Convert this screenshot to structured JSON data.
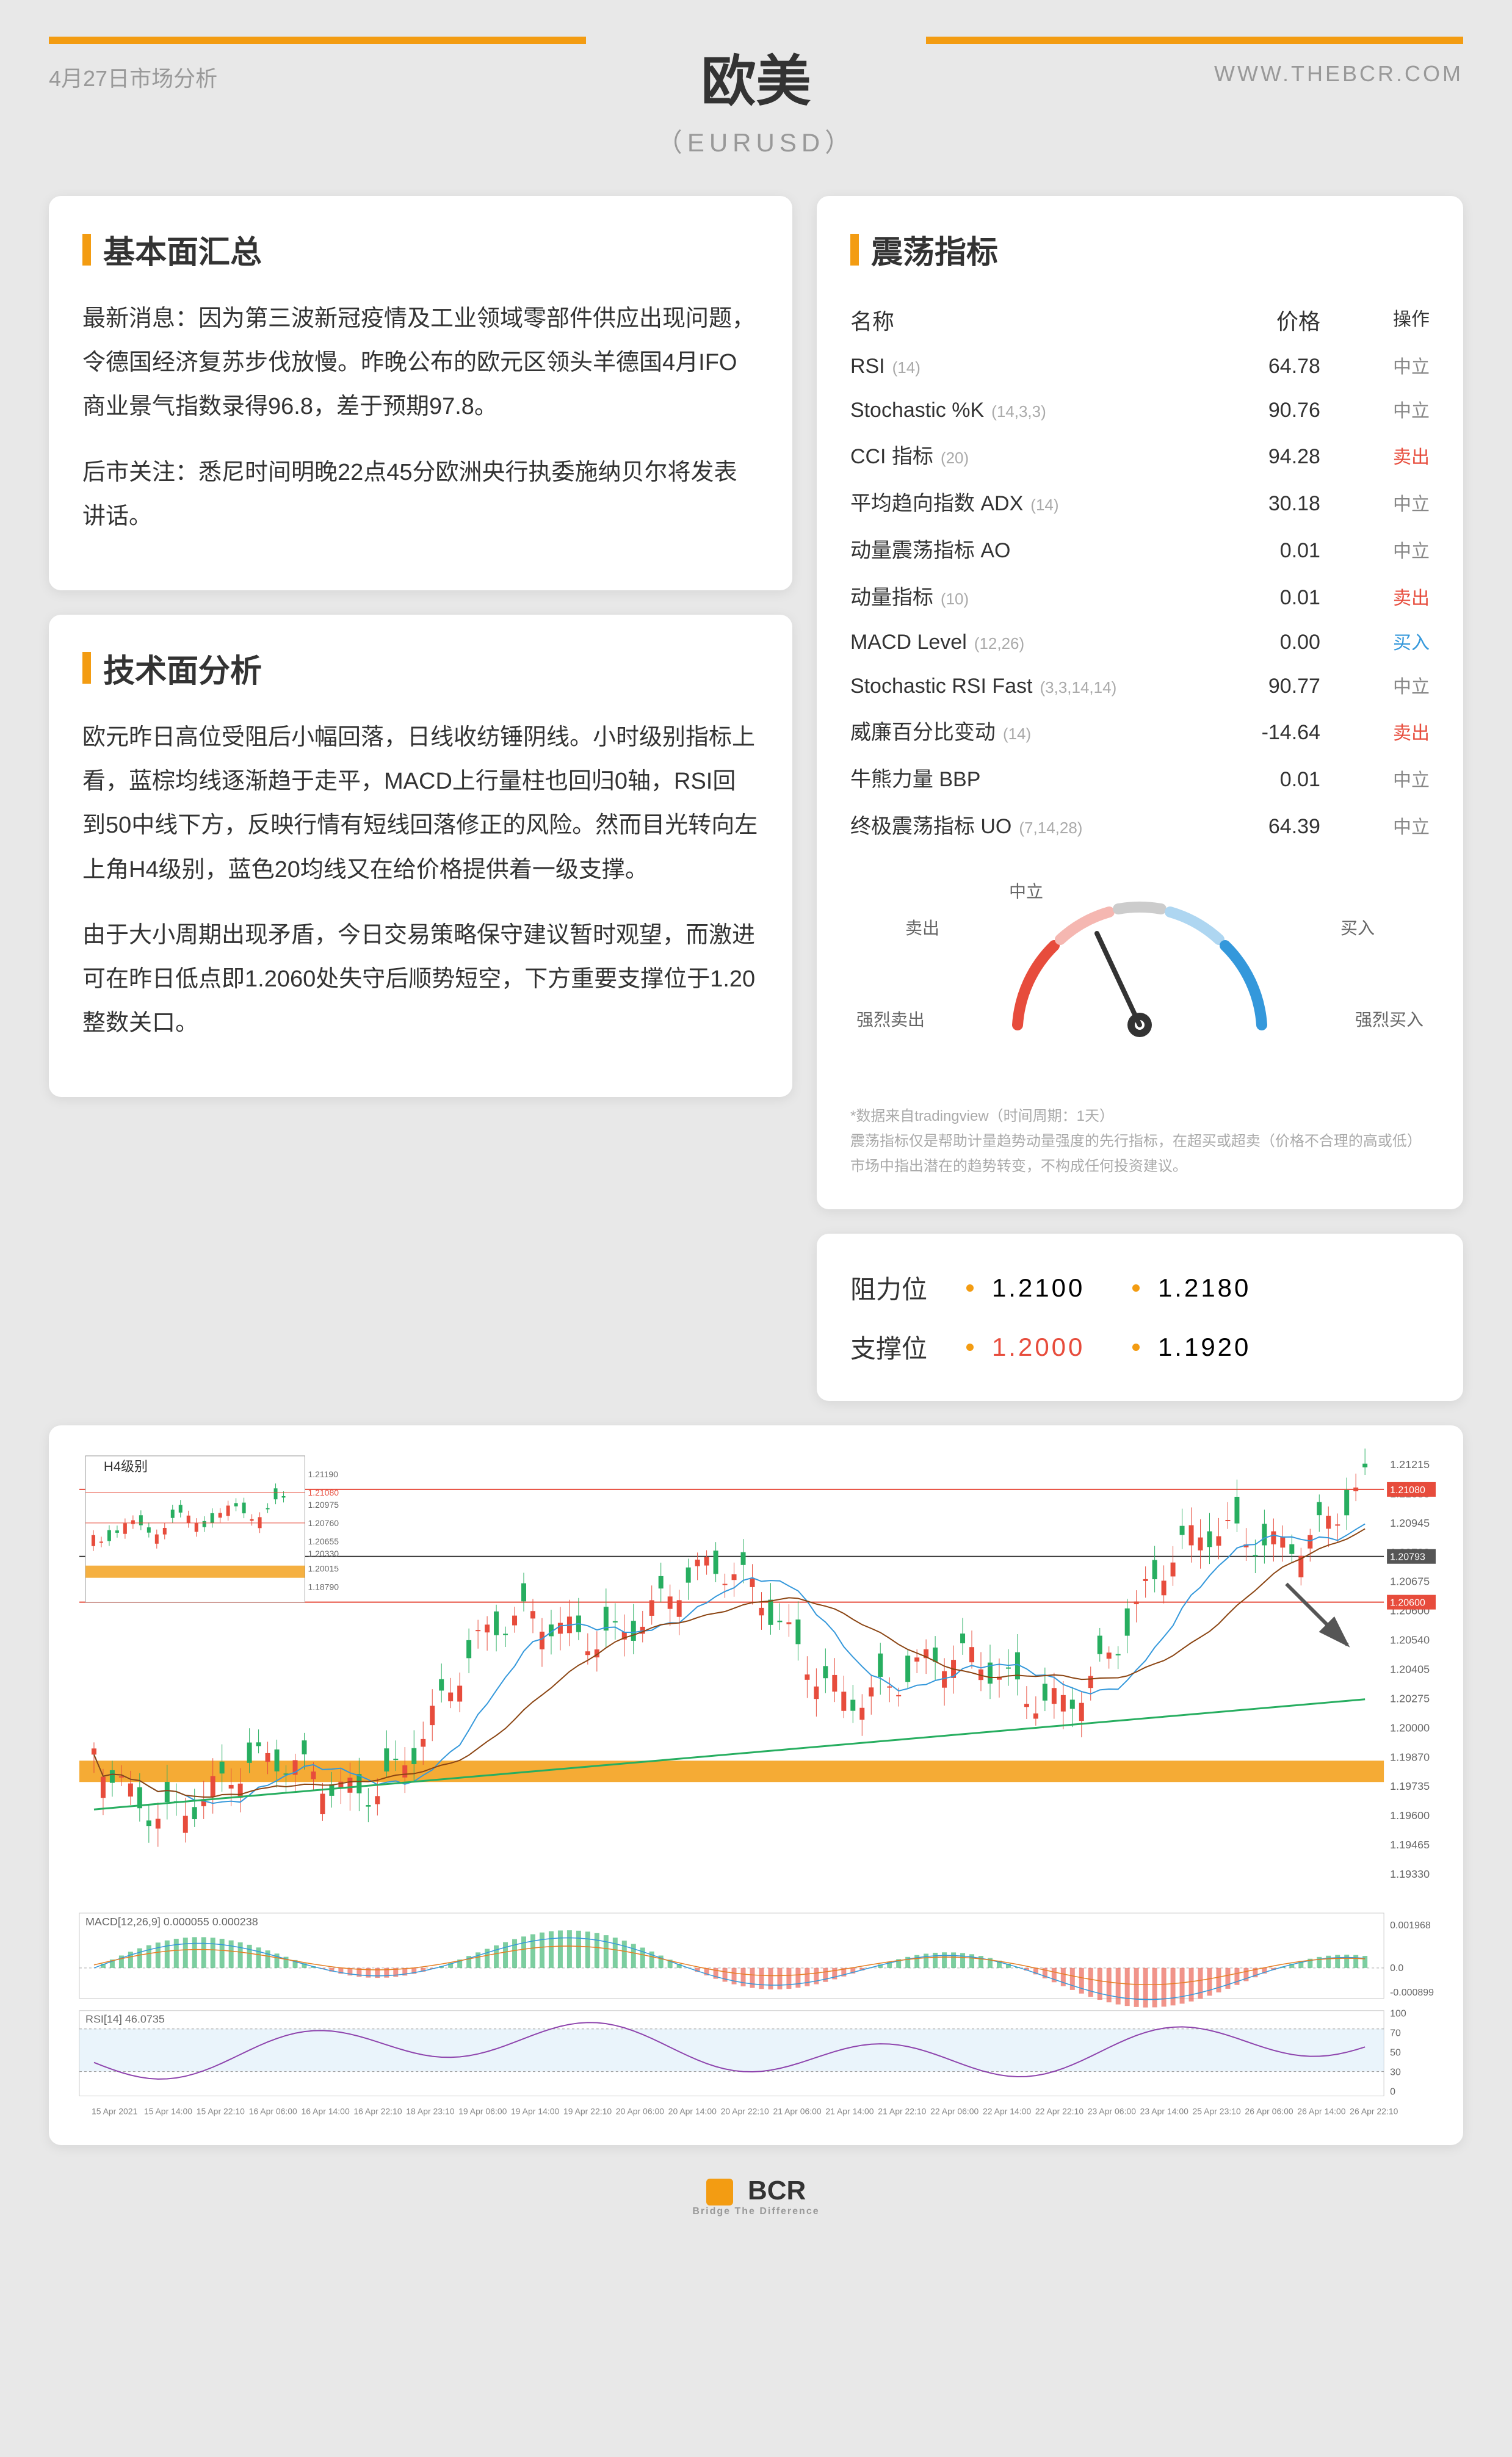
{
  "header": {
    "date": "4月27日市场分析",
    "website": "WWW.THEBCR.COM",
    "title": "欧美",
    "subtitle": "（EURUSD）"
  },
  "fundamentals": {
    "title": "基本面汇总",
    "p1": "最新消息：因为第三波新冠疫情及工业领域零部件供应出现问题，令德国经济复苏步伐放慢。昨晚公布的欧元区领头羊德国4月IFO商业景气指数录得96.8，差于预期97.8。",
    "p2": "后市关注：悉尼时间明晚22点45分欧洲央行执委施纳贝尔将发表讲话。"
  },
  "technical": {
    "title": "技术面分析",
    "p1": "欧元昨日高位受阻后小幅回落，日线收纺锤阴线。小时级别指标上看，蓝棕均线逐渐趋于走平，MACD上行量柱也回归0轴，RSI回到50中线下方，反映行情有短线回落修正的风险。然而目光转向左上角H4级别，蓝色20均线又在给价格提供着一级支撑。",
    "p2": "由于大小周期出现矛盾，今日交易策略保守建议暂时观望，而激进可在昨日低点即1.2060处失守后顺势短空，下方重要支撑位于1.20整数关口。"
  },
  "oscillators": {
    "title": "震荡指标",
    "header": {
      "name": "名称",
      "price": "价格",
      "action": "操作"
    },
    "rows": [
      {
        "name": "RSI",
        "param": "(14)",
        "price": "64.78",
        "action": "中立",
        "color": "#888"
      },
      {
        "name": "Stochastic %K",
        "param": "(14,3,3)",
        "price": "90.76",
        "action": "中立",
        "color": "#888"
      },
      {
        "name": "CCI 指标",
        "param": "(20)",
        "price": "94.28",
        "action": "卖出",
        "color": "#e74c3c"
      },
      {
        "name": "平均趋向指数 ADX",
        "param": "(14)",
        "price": "30.18",
        "action": "中立",
        "color": "#888"
      },
      {
        "name": "动量震荡指标 AO",
        "param": "",
        "price": "0.01",
        "action": "中立",
        "color": "#888"
      },
      {
        "name": "动量指标",
        "param": "(10)",
        "price": "0.01",
        "action": "卖出",
        "color": "#e74c3c"
      },
      {
        "name": "MACD Level",
        "param": "(12,26)",
        "price": "0.00",
        "action": "买入",
        "color": "#3498db"
      },
      {
        "name": "Stochastic RSI Fast",
        "param": "(3,3,14,14)",
        "price": "90.77",
        "action": "中立",
        "color": "#888"
      },
      {
        "name": "威廉百分比变动",
        "param": "(14)",
        "price": "-14.64",
        "action": "卖出",
        "color": "#e74c3c"
      },
      {
        "name": "牛熊力量 BBP",
        "param": "",
        "price": "0.01",
        "action": "中立",
        "color": "#888"
      },
      {
        "name": "终极震荡指标 UO",
        "param": "(7,14,28)",
        "price": "64.39",
        "action": "中立",
        "color": "#888"
      }
    ],
    "gauge": {
      "labels": {
        "strong_sell": "强烈卖出",
        "sell": "卖出",
        "neutral": "中立",
        "buy": "买入",
        "strong_buy": "强烈买入"
      },
      "needle_angle": -25,
      "colors": {
        "sell": "#e74c3c",
        "neutral": "#bbb",
        "buy": "#3498db"
      }
    },
    "disclaimer": "*数据来自tradingview（时间周期：1天）\n震荡指标仅是帮助计量趋势动量强度的先行指标，在超买或超卖（价格不合理的高或低）市场中指出潜在的趋势转变，不构成任何投资建议。"
  },
  "levels": {
    "resistance": {
      "label": "阻力位",
      "v1": "1.2100",
      "v2": "1.2180",
      "c1": "#333",
      "c2": "#333"
    },
    "support": {
      "label": "支撑位",
      "v1": "1.2000",
      "v2": "1.1920",
      "c1": "#e74c3c",
      "c2": "#333"
    }
  },
  "chart": {
    "inset_label": "H4级别",
    "y_labels": [
      "1.21215",
      "1.21080",
      "1.20945",
      "1.20793",
      "1.20675",
      "1.20600",
      "1.20540",
      "1.20405",
      "1.20275",
      "1.20000",
      "1.19870",
      "1.19735",
      "1.19600",
      "1.19465",
      "1.19330"
    ],
    "macd_label": "MACD[12,26,9] 0.000055 0.000238",
    "macd_y": [
      "0.001968",
      "0.0",
      "-0.000899"
    ],
    "rsi_label": "RSI[14] 46.0735",
    "rsi_y": [
      "100",
      "70",
      "50",
      "30",
      "0"
    ],
    "x_labels": [
      "15 Apr 2021",
      "15 Apr 14:00",
      "15 Apr 22:10",
      "16 Apr 06:00",
      "16 Apr 14:00",
      "16 Apr 22:10",
      "18 Apr 23:10",
      "19 Apr 06:00",
      "19 Apr 14:00",
      "19 Apr 22:10",
      "20 Apr 06:00",
      "20 Apr 14:00",
      "20 Apr 22:10",
      "21 Apr 06:00",
      "21 Apr 14:00",
      "21 Apr 22:10",
      "22 Apr 06:00",
      "22 Apr 14:00",
      "22 Apr 22:10",
      "23 Apr 06:00",
      "23 Apr 14:00",
      "25 Apr 23:10",
      "26 Apr 06:00",
      "26 Apr 14:00",
      "26 Apr 22:10"
    ],
    "hlines": [
      {
        "y": 0.05,
        "color": "#e74c3c",
        "label": "1.21080"
      },
      {
        "y": 0.22,
        "color": "#e74c3c",
        "label": "1.20793"
      },
      {
        "y": 0.35,
        "color": "#e74c3c",
        "label": "1.20600"
      },
      {
        "y": 0.7,
        "color": "#f39c12",
        "label": "1.20000",
        "thick": true
      }
    ],
    "candle_colors": {
      "up": "#27ae60",
      "down": "#e74c3c",
      "ma1": "#3498db",
      "ma2": "#8b4513",
      "ma3": "#27ae60"
    }
  },
  "footer": {
    "brand": "BCR",
    "tagline": "Bridge The Difference"
  }
}
